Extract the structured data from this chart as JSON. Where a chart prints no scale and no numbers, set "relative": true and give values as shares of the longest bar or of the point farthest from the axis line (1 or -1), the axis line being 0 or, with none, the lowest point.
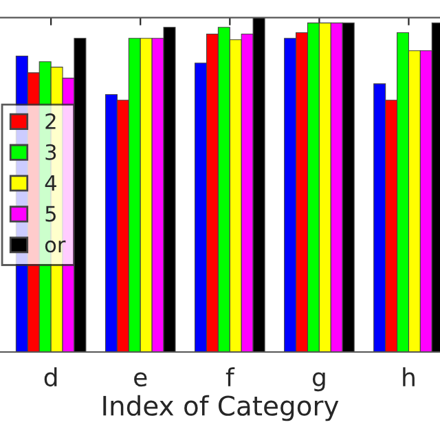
{
  "chart_data": {
    "type": "bar",
    "relative": true,
    "xlabel": "Index of Category",
    "categories": [
      "d",
      "e",
      "f",
      "g",
      "h"
    ],
    "series": [
      {
        "color": "#0000ff",
        "values": [
          0.885,
          0.77,
          0.864,
          0.938,
          0.802
        ]
      },
      {
        "name": "2",
        "color": "#ff0000",
        "values": [
          0.835,
          0.753,
          0.951,
          0.955,
          0.753
        ]
      },
      {
        "name": "3",
        "color": "#00ff00",
        "values": [
          0.868,
          0.938,
          0.971,
          0.984,
          0.955
        ]
      },
      {
        "name": "4",
        "color": "#ffff00",
        "values": [
          0.852,
          0.938,
          0.934,
          0.984,
          0.901
        ]
      },
      {
        "name": "5",
        "color": "#ff00ff",
        "values": [
          0.819,
          0.938,
          0.951,
          0.984,
          0.901
        ]
      },
      {
        "name": "or",
        "color": "#000000",
        "values": [
          0.938,
          0.971,
          1.0,
          0.984,
          0.984
        ]
      }
    ],
    "legend": "left",
    "grid": false
  }
}
